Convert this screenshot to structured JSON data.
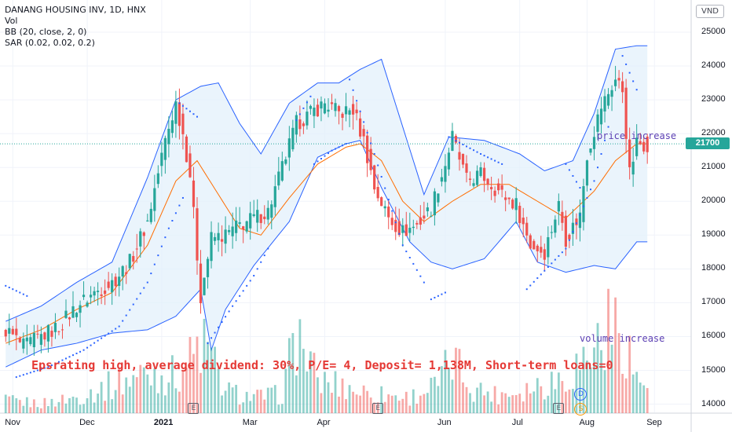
{
  "header": {
    "symbol": "DANANG HOUSING INV, 1D, HNX",
    "indicators": [
      "Vol",
      "BB (20, close, 2, 0)",
      "SAR (0.02, 0.02, 0.2)"
    ]
  },
  "currency": "VND",
  "last_price": "21700",
  "annotations": {
    "price": "price increase",
    "volume": "volume increase",
    "fundamentals": "Epsrating high, average dividend: 30%, P/E= 4, Deposit= 1,138M, Short-term loans=0"
  },
  "events": {
    "earnings": "E",
    "dividend": "D",
    "split": "S"
  },
  "colors": {
    "up": "#26a69a",
    "down": "#ef5350",
    "bb": "#2962ff",
    "basis": "#ff6d00",
    "sar": "#2962ff",
    "fill": "#e3f0fb"
  },
  "chart_data": {
    "type": "candlestick",
    "y_ticks": [
      "25000",
      "24000",
      "23000",
      "22000",
      "21000",
      "20000",
      "19000",
      "18000",
      "17000",
      "16000",
      "15000",
      "14000"
    ],
    "ylim": [
      13700,
      25300
    ],
    "x_ticks": [
      {
        "label": "Nov",
        "i": 2,
        "bold": false
      },
      {
        "label": "Dec",
        "i": 23,
        "bold": false
      },
      {
        "label": "2021",
        "i": 44,
        "bold": true
      },
      {
        "label": "Mar",
        "i": 69,
        "bold": false
      },
      {
        "label": "Apr",
        "i": 90,
        "bold": false
      },
      {
        "label": "Jun",
        "i": 124,
        "bold": false
      },
      {
        "label": "Jul",
        "i": 145,
        "bold": false
      },
      {
        "label": "Aug",
        "i": 164,
        "bold": false
      },
      {
        "label": "Sep",
        "i": 183,
        "bold": false
      }
    ],
    "x_count": 185,
    "earnings_at": [
      53,
      105,
      156
    ],
    "dividend_at": [
      162
    ],
    "split_at": [
      162
    ],
    "bb_upper": [
      [
        0,
        16450
      ],
      [
        10,
        16900
      ],
      [
        20,
        17600
      ],
      [
        30,
        18200
      ],
      [
        40,
        20700
      ],
      [
        48,
        23000
      ],
      [
        55,
        23400
      ],
      [
        60,
        23500
      ],
      [
        66,
        22300
      ],
      [
        72,
        21400
      ],
      [
        80,
        22900
      ],
      [
        88,
        23500
      ],
      [
        94,
        23500
      ],
      [
        100,
        23900
      ],
      [
        106,
        24200
      ],
      [
        112,
        22200
      ],
      [
        118,
        20200
      ],
      [
        125,
        21900
      ],
      [
        135,
        21800
      ],
      [
        145,
        21400
      ],
      [
        152,
        20900
      ],
      [
        160,
        21200
      ],
      [
        166,
        22600
      ],
      [
        172,
        24500
      ],
      [
        178,
        24600
      ]
    ],
    "bb_lower": [
      [
        0,
        15100
      ],
      [
        10,
        15600
      ],
      [
        20,
        15800
      ],
      [
        30,
        16100
      ],
      [
        40,
        16200
      ],
      [
        48,
        16600
      ],
      [
        55,
        17400
      ],
      [
        58,
        15600
      ],
      [
        62,
        16800
      ],
      [
        70,
        18100
      ],
      [
        80,
        19400
      ],
      [
        88,
        21300
      ],
      [
        96,
        21700
      ],
      [
        100,
        21800
      ],
      [
        106,
        20400
      ],
      [
        114,
        18800
      ],
      [
        120,
        18200
      ],
      [
        126,
        18000
      ],
      [
        135,
        18300
      ],
      [
        144,
        19400
      ],
      [
        150,
        18200
      ],
      [
        158,
        17900
      ],
      [
        166,
        18100
      ],
      [
        172,
        18000
      ],
      [
        178,
        18800
      ]
    ],
    "bb_basis": [
      [
        0,
        15800
      ],
      [
        10,
        16200
      ],
      [
        20,
        16800
      ],
      [
        30,
        17300
      ],
      [
        40,
        18700
      ],
      [
        48,
        20600
      ],
      [
        54,
        21200
      ],
      [
        60,
        20200
      ],
      [
        66,
        19200
      ],
      [
        72,
        19000
      ],
      [
        80,
        20100
      ],
      [
        88,
        21100
      ],
      [
        96,
        21600
      ],
      [
        100,
        21700
      ],
      [
        106,
        21200
      ],
      [
        112,
        20000
      ],
      [
        118,
        19400
      ],
      [
        126,
        20000
      ],
      [
        134,
        20500
      ],
      [
        142,
        20500
      ],
      [
        150,
        20000
      ],
      [
        158,
        19500
      ],
      [
        166,
        20300
      ],
      [
        172,
        21200
      ],
      [
        178,
        21700
      ]
    ],
    "candle_path": [
      [
        0,
        16200
      ],
      [
        5,
        15700
      ],
      [
        10,
        16000
      ],
      [
        15,
        16300
      ],
      [
        20,
        16900
      ],
      [
        25,
        17300
      ],
      [
        30,
        17600
      ],
      [
        35,
        18200
      ],
      [
        40,
        19400
      ],
      [
        45,
        21800
      ],
      [
        48,
        22900
      ],
      [
        50,
        22000
      ],
      [
        52,
        20800
      ],
      [
        55,
        17200
      ],
      [
        58,
        18900
      ],
      [
        62,
        19000
      ],
      [
        66,
        19300
      ],
      [
        70,
        19500
      ],
      [
        74,
        19700
      ],
      [
        78,
        21000
      ],
      [
        82,
        22300
      ],
      [
        86,
        22600
      ],
      [
        90,
        22900
      ],
      [
        94,
        22600
      ],
      [
        98,
        22700
      ],
      [
        101,
        21800
      ],
      [
        104,
        20400
      ],
      [
        108,
        19500
      ],
      [
        112,
        19100
      ],
      [
        116,
        19300
      ],
      [
        120,
        19800
      ],
      [
        124,
        21100
      ],
      [
        126,
        21900
      ],
      [
        130,
        20600
      ],
      [
        134,
        20800
      ],
      [
        140,
        20200
      ],
      [
        144,
        19900
      ],
      [
        148,
        18700
      ],
      [
        152,
        18500
      ],
      [
        156,
        19900
      ],
      [
        158,
        18900
      ],
      [
        162,
        19600
      ],
      [
        164,
        21400
      ],
      [
        168,
        22800
      ],
      [
        170,
        23200
      ],
      [
        172,
        23600
      ],
      [
        174,
        23300
      ],
      [
        176,
        20800
      ],
      [
        178,
        21700
      ]
    ],
    "sar_segments": [
      [
        [
          0,
          17500
        ],
        [
          6,
          17200
        ]
      ],
      [
        [
          3,
          14800
        ],
        [
          12,
          15100
        ],
        [
          22,
          15600
        ],
        [
          32,
          16300
        ],
        [
          40,
          17600
        ],
        [
          46,
          19200
        ],
        [
          50,
          20100
        ]
      ],
      [
        [
          49,
          22900
        ],
        [
          54,
          22500
        ]
      ],
      [
        [
          57,
          15800
        ],
        [
          64,
          16900
        ],
        [
          70,
          17800
        ],
        [
          74,
          18600
        ]
      ],
      [
        [
          82,
          22400
        ],
        [
          86,
          23100
        ]
      ],
      [
        [
          87,
          21100
        ],
        [
          92,
          21500
        ],
        [
          96,
          21700
        ]
      ],
      [
        [
          97,
          23600
        ],
        [
          104,
          21400
        ],
        [
          112,
          18700
        ],
        [
          118,
          17600
        ]
      ],
      [
        [
          120,
          17100
        ],
        [
          124,
          17300
        ]
      ],
      [
        [
          125,
          21900
        ],
        [
          134,
          21400
        ],
        [
          140,
          21100
        ]
      ],
      [
        [
          147,
          17400
        ],
        [
          158,
          18600
        ],
        [
          166,
          20600
        ],
        [
          170,
          22200
        ]
      ],
      [
        [
          158,
          21100
        ],
        [
          162,
          20400
        ]
      ],
      [
        [
          174,
          24300
        ],
        [
          178,
          23300
        ]
      ]
    ],
    "volume_peaks": [
      [
        0,
        400
      ],
      [
        10,
        300
      ],
      [
        20,
        500
      ],
      [
        30,
        900
      ],
      [
        40,
        1300
      ],
      [
        48,
        1200
      ],
      [
        56,
        2200
      ],
      [
        62,
        700
      ],
      [
        70,
        500
      ],
      [
        78,
        600
      ],
      [
        82,
        2600
      ],
      [
        88,
        1000
      ],
      [
        94,
        900
      ],
      [
        100,
        700
      ],
      [
        106,
        600
      ],
      [
        114,
        500
      ],
      [
        122,
        900
      ],
      [
        126,
        1700
      ],
      [
        132,
        800
      ],
      [
        138,
        600
      ],
      [
        144,
        700
      ],
      [
        150,
        900
      ],
      [
        158,
        1200
      ],
      [
        164,
        1800
      ],
      [
        170,
        2700
      ],
      [
        175,
        2500
      ],
      [
        178,
        1000
      ]
    ]
  }
}
